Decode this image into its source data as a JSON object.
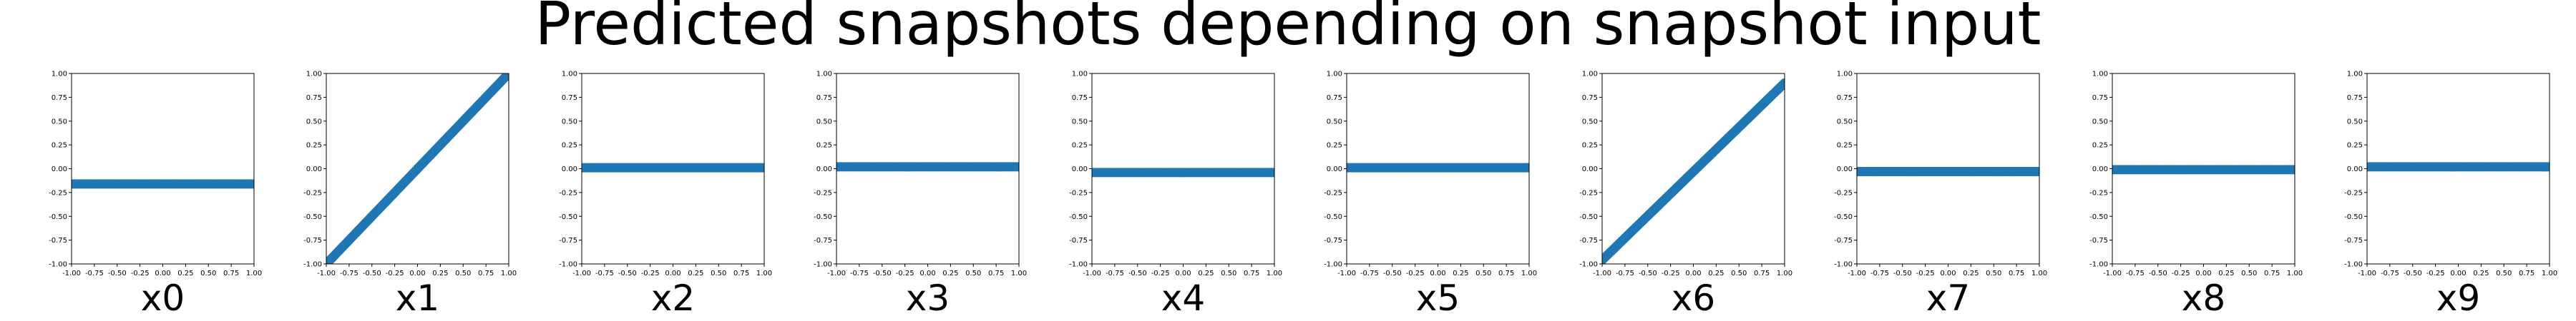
{
  "title": "Predicted snapshots depending on snapshot input",
  "colors": {
    "series": "#1f77b4",
    "axes": "#000000",
    "background": "#ffffff"
  },
  "chart_data": {
    "type": "scatter",
    "title": "Predicted snapshots depending on snapshot input",
    "xlim": [
      -1.0,
      1.0
    ],
    "ylim": [
      -1.0,
      1.0
    ],
    "xticks": [
      "-1.00",
      "-0.75",
      "-0.50",
      "-0.25",
      "0.00",
      "0.25",
      "0.50",
      "0.75",
      "1.00"
    ],
    "yticks": [
      "-1.00",
      "-0.75",
      "-0.50",
      "-0.25",
      "0.00",
      "0.25",
      "0.50",
      "0.75",
      "1.00"
    ],
    "grid": false,
    "panels": [
      {
        "xlabel": "x0",
        "slope": 0.0,
        "intercept": -0.16
      },
      {
        "xlabel": "x1",
        "slope": 1.0,
        "intercept": 0.0
      },
      {
        "xlabel": "x2",
        "slope": 0.0,
        "intercept": 0.01
      },
      {
        "xlabel": "x3",
        "slope": 0.0,
        "intercept": 0.02
      },
      {
        "xlabel": "x4",
        "slope": 0.0,
        "intercept": -0.04
      },
      {
        "xlabel": "x5",
        "slope": 0.0,
        "intercept": 0.01
      },
      {
        "xlabel": "x6",
        "slope": 0.93,
        "intercept": -0.03
      },
      {
        "xlabel": "x7",
        "slope": 0.0,
        "intercept": -0.03
      },
      {
        "xlabel": "x8",
        "slope": 0.0,
        "intercept": -0.01
      },
      {
        "xlabel": "x9",
        "slope": 0.0,
        "intercept": 0.02
      }
    ]
  }
}
